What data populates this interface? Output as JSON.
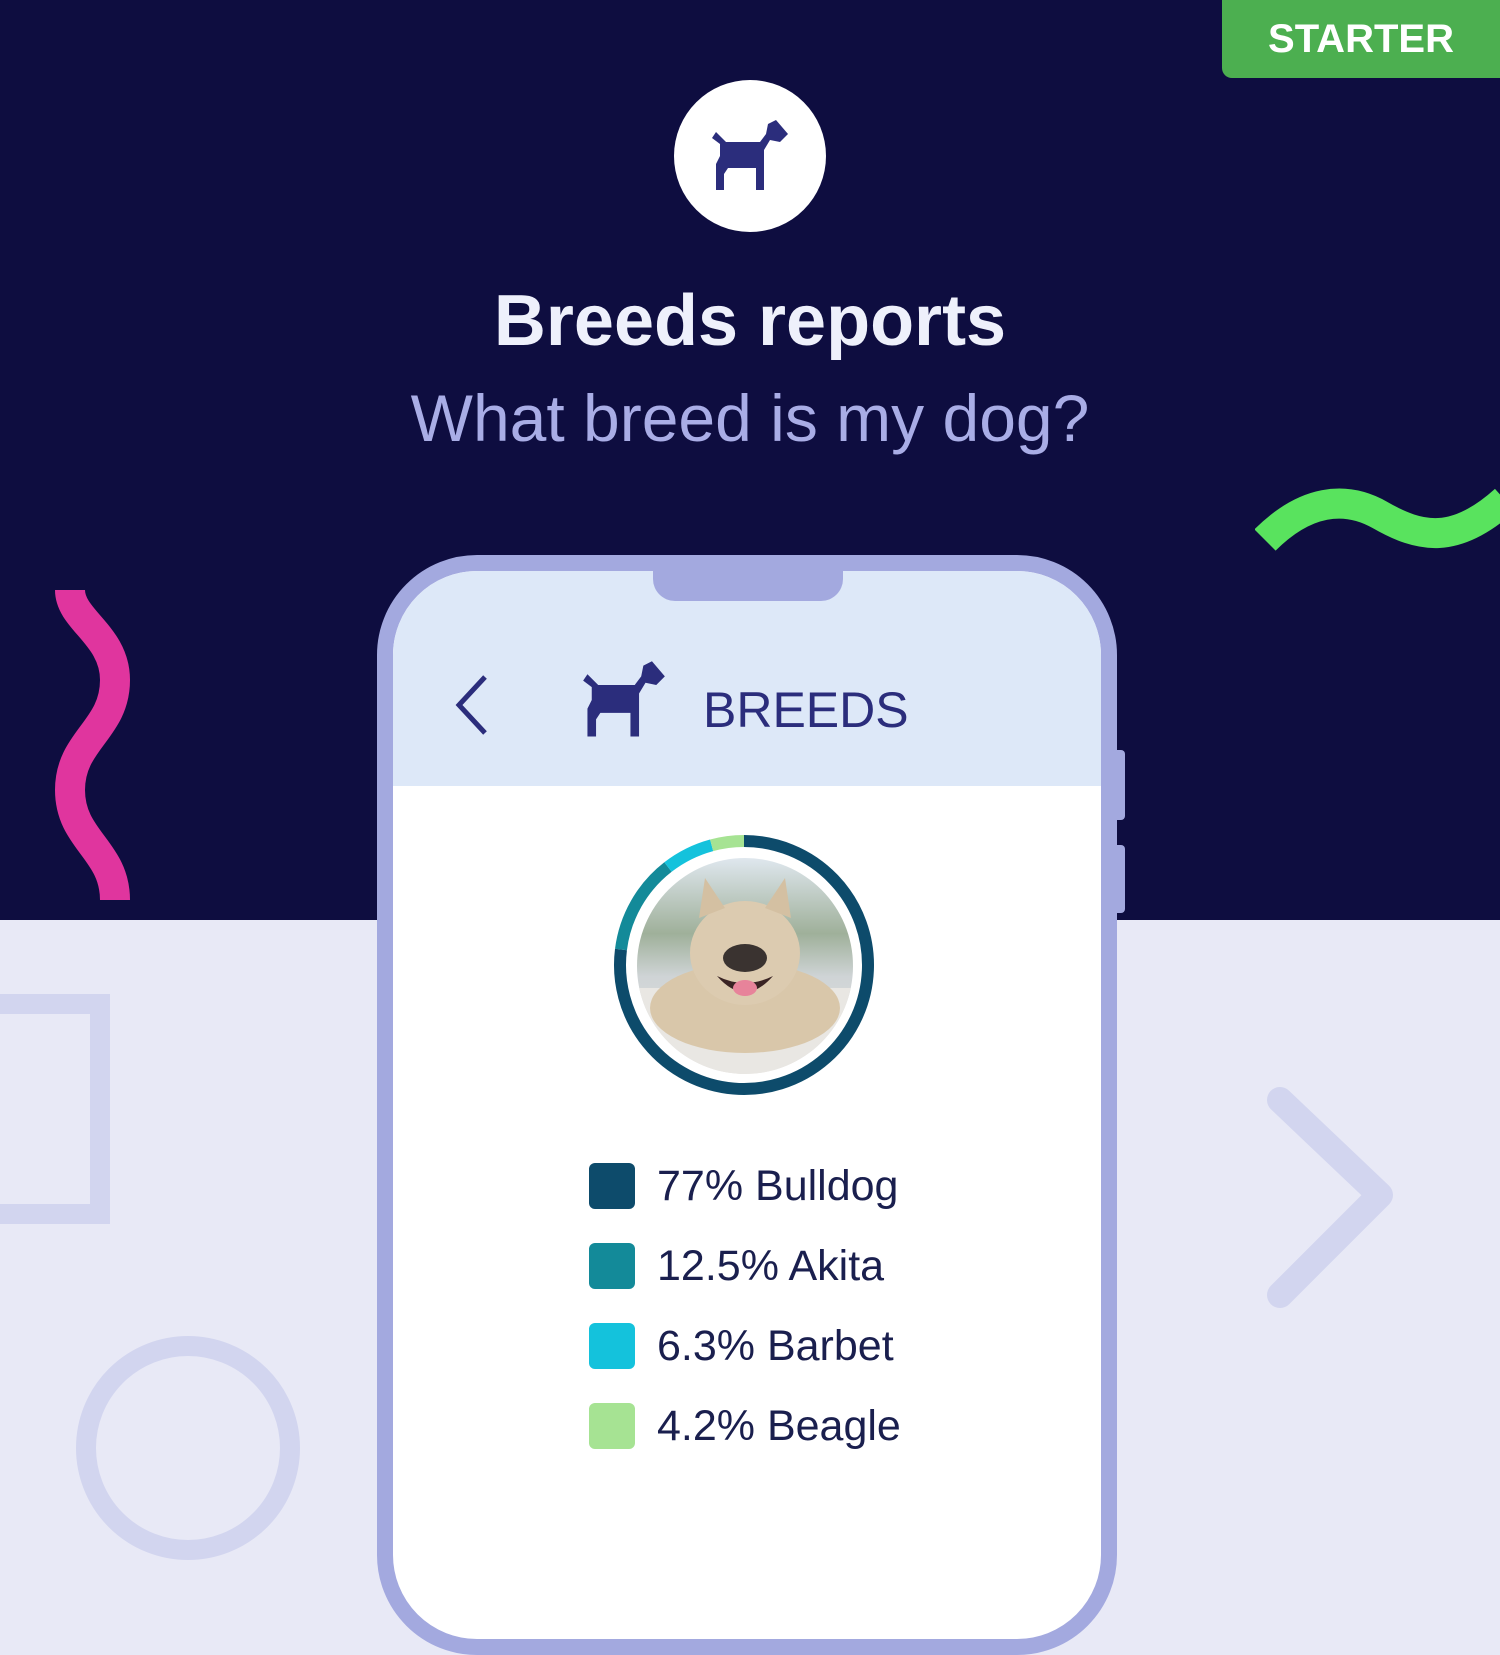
{
  "badge": {
    "label": "STARTER"
  },
  "hero": {
    "title": "Breeds reports",
    "subtitle": "What breed is my dog?",
    "icon": "dog-icon"
  },
  "app": {
    "header": {
      "back_icon": "chevron-left-icon",
      "icon": "dog-icon",
      "title": "BREEDS"
    },
    "photo": "french-bulldog-photo"
  },
  "chart_data": {
    "type": "pie",
    "style": "donut",
    "values": [
      77,
      12.5,
      6.3,
      4.2
    ],
    "categories": [
      "Bulldog",
      "Akita",
      "Barbet",
      "Beagle"
    ],
    "colors": [
      "#0d4b6b",
      "#138a99",
      "#14c2dc",
      "#a6e393"
    ]
  },
  "legend": [
    {
      "label": "77% Bulldog",
      "color": "#0d4b6b"
    },
    {
      "label": "12.5% Akita",
      "color": "#138a99"
    },
    {
      "label": "6.3% Barbet",
      "color": "#14c2dc"
    },
    {
      "label": "4.2% Beagle",
      "color": "#a6e393"
    }
  ],
  "colors": {
    "background_dark": "#0e0d40",
    "background_light": "#e8e9f6",
    "accent_green": "#4caf50",
    "brand": "#2b2d7c"
  }
}
